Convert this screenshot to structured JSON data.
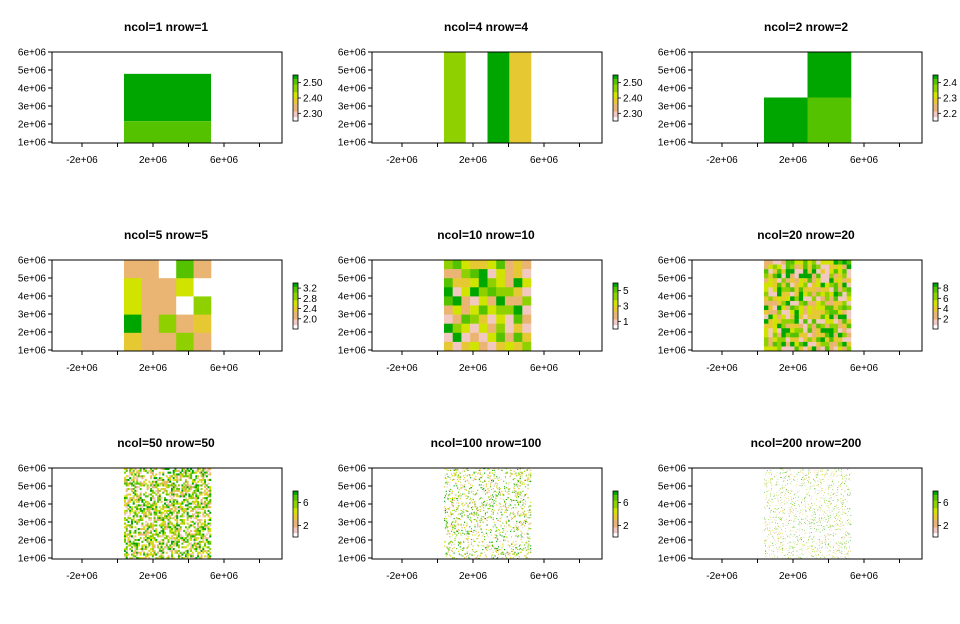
{
  "layout": "3x3 raster plot grid",
  "colors": {
    "ramp": [
      "#FFFFFF",
      "#F2C9C0",
      "#EAB473",
      "#E6C832",
      "#D0E400",
      "#8FD100",
      "#55C200",
      "#00A600"
    ]
  },
  "chart_data": [
    {
      "type": "heatmap",
      "title": "ncol=1 nrow=1",
      "ncol": 1,
      "nrow": 1,
      "xlim": [
        -4000000,
        9000000
      ],
      "ylim": [
        1000000,
        6000000
      ],
      "xticks": [
        "-2e+06",
        "2e+06",
        "6e+06"
      ],
      "yticks": [
        "1e+06",
        "2e+06",
        "3e+06",
        "4e+06",
        "5e+06",
        "6e+06"
      ],
      "legend": {
        "range": [
          2.25,
          2.55
        ],
        "ticks": [
          "2.30",
          "2.40",
          "2.50"
        ]
      },
      "grid_description": "single raster cell; approximate observed values per row band",
      "bands": [
        {
          "ymax": 6000000,
          "ymin": 4800000,
          "value": 2.27
        },
        {
          "ymax": 4800000,
          "ymin": 2200000,
          "value": 2.53
        },
        {
          "ymax": 2200000,
          "ymin": 1000000,
          "value": 2.5
        }
      ]
    },
    {
      "type": "heatmap",
      "title": "ncol=4 nrow=4",
      "ncol": 4,
      "nrow": 4,
      "xlim": [
        -4000000,
        9000000
      ],
      "ylim": [
        1000000,
        6000000
      ],
      "xticks": [
        "-2e+06",
        "2e+06",
        "6e+06"
      ],
      "yticks": [
        "1e+06",
        "2e+06",
        "3e+06",
        "4e+06",
        "5e+06",
        "6e+06"
      ],
      "legend": {
        "range": [
          2.25,
          2.55
        ],
        "ticks": [
          "2.30",
          "2.40",
          "2.50"
        ]
      },
      "column_values": [
        2.47,
        2.27,
        2.53,
        2.37
      ]
    },
    {
      "type": "heatmap",
      "title": "ncol=2 nrow=2",
      "ncol": 2,
      "nrow": 2,
      "xlim": [
        -4000000,
        9000000
      ],
      "ylim": [
        1000000,
        6000000
      ],
      "xticks": [
        "-2e+06",
        "2e+06",
        "6e+06"
      ],
      "yticks": [
        "1e+06",
        "2e+06",
        "3e+06",
        "4e+06",
        "5e+06",
        "6e+06"
      ],
      "legend": {
        "range": [
          2.15,
          2.45
        ],
        "ticks": [
          "2.2",
          "2.3",
          "2.4"
        ]
      },
      "cells": [
        [
          2.17,
          2.47
        ],
        [
          2.47,
          2.4
        ]
      ]
    },
    {
      "type": "heatmap",
      "title": "ncol=5 nrow=5",
      "ncol": 5,
      "nrow": 5,
      "xlim": [
        -4000000,
        9000000
      ],
      "ylim": [
        1000000,
        6000000
      ],
      "xticks": [
        "-2e+06",
        "2e+06",
        "6e+06"
      ],
      "yticks": [
        "1e+06",
        "2e+06",
        "3e+06",
        "4e+06",
        "5e+06",
        "6e+06"
      ],
      "legend": {
        "range": [
          1.6,
          3.4
        ],
        "ticks": [
          "2.0",
          "2.4",
          "2.8",
          "3.2"
        ]
      },
      "cells": [
        [
          2.2,
          2.2,
          1.7,
          3.1,
          2.2
        ],
        [
          2.6,
          2.2,
          2.2,
          2.6,
          1.7
        ],
        [
          2.6,
          2.2,
          2.0,
          1.7,
          2.8
        ],
        [
          3.3,
          2.2,
          2.8,
          2.2,
          2.4
        ],
        [
          2.4,
          2.2,
          2.2,
          2.8,
          2.2
        ]
      ]
    },
    {
      "type": "heatmap",
      "title": "ncol=10 nrow=10",
      "ncol": 10,
      "nrow": 10,
      "xlim": [
        -4000000,
        9000000
      ],
      "ylim": [
        1000000,
        6000000
      ],
      "xticks": [
        "-2e+06",
        "2e+06",
        "6e+06"
      ],
      "yticks": [
        "1e+06",
        "2e+06",
        "3e+06",
        "4e+06",
        "5e+06",
        "6e+06"
      ],
      "legend": {
        "range": [
          0,
          6
        ],
        "ticks": [
          "1",
          "3",
          "5"
        ]
      },
      "cells": "random pattern (values 0-6), generated"
    },
    {
      "type": "heatmap",
      "title": "ncol=20 nrow=20",
      "ncol": 20,
      "nrow": 20,
      "xlim": [
        -4000000,
        9000000
      ],
      "ylim": [
        1000000,
        6000000
      ],
      "xticks": [
        "-2e+06",
        "2e+06",
        "6e+06"
      ],
      "yticks": [
        "1e+06",
        "2e+06",
        "3e+06",
        "4e+06",
        "5e+06",
        "6e+06"
      ],
      "legend": {
        "range": [
          0,
          9
        ],
        "ticks": [
          "2",
          "4",
          "6",
          "8"
        ]
      },
      "cells": "random pattern (values 0-9), generated"
    },
    {
      "type": "heatmap",
      "title": "ncol=50 nrow=50",
      "ncol": 50,
      "nrow": 50,
      "xlim": [
        -4000000,
        9000000
      ],
      "ylim": [
        1000000,
        6000000
      ],
      "xticks": [
        "-2e+06",
        "2e+06",
        "6e+06"
      ],
      "yticks": [
        "1e+06",
        "2e+06",
        "3e+06",
        "4e+06",
        "5e+06",
        "6e+06"
      ],
      "legend": {
        "range": [
          0,
          8
        ],
        "ticks": [
          "2",
          "6"
        ]
      },
      "cells": "sparse random pattern, generated"
    },
    {
      "type": "heatmap",
      "title": "ncol=100 nrow=100",
      "ncol": 100,
      "nrow": 100,
      "xlim": [
        -4000000,
        9000000
      ],
      "ylim": [
        1000000,
        6000000
      ],
      "xticks": [
        "-2e+06",
        "2e+06",
        "6e+06"
      ],
      "yticks": [
        "1e+06",
        "2e+06",
        "3e+06",
        "4e+06",
        "5e+06",
        "6e+06"
      ],
      "legend": {
        "range": [
          0,
          8
        ],
        "ticks": [
          "2",
          "6"
        ]
      },
      "cells": "very sparse random pattern, generated"
    },
    {
      "type": "heatmap",
      "title": "ncol=200 nrow=200",
      "ncol": 200,
      "nrow": 200,
      "xlim": [
        -4000000,
        9000000
      ],
      "ylim": [
        1000000,
        6000000
      ],
      "xticks": [
        "-2e+06",
        "2e+06",
        "6e+06"
      ],
      "yticks": [
        "1e+06",
        "2e+06",
        "3e+06",
        "4e+06",
        "5e+06",
        "6e+06"
      ],
      "legend": {
        "range": [
          0,
          8
        ],
        "ticks": [
          "2",
          "6"
        ]
      },
      "cells": "extremely sparse random pattern, generated"
    }
  ]
}
